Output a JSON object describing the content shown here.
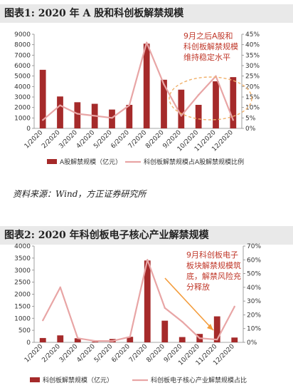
{
  "colors": {
    "bar": "#a52a2a",
    "line": "#e8a5a5",
    "ellipse": "#f0b06a",
    "arrow": "#f39c3b",
    "annotation": "#c0392b"
  },
  "source_text": "资料来源：Wind，方正证券研究所",
  "chart_data": [
    {
      "type": "bar",
      "title": "图表1:   2020 年 A 股和科创板解禁规模",
      "categories": [
        "1/2020",
        "2/2020",
        "3/2020",
        "4/2020",
        "5/2020",
        "6/2020",
        "7/2020",
        "8/2020",
        "9/2020",
        "10/2020",
        "11/2020",
        "12/2020"
      ],
      "ylim": [
        0,
        9000
      ],
      "y2lim": [
        0,
        45
      ],
      "yticks": [
        0,
        1000,
        2000,
        3000,
        4000,
        5000,
        6000,
        7000,
        8000,
        9000
      ],
      "y2ticks": [
        "0%",
        "5%",
        "10%",
        "15%",
        "20%",
        "25%",
        "30%",
        "35%",
        "40%",
        "45%"
      ],
      "series": [
        {
          "name": "A股解禁规模（亿元）",
          "kind": "bar",
          "axis": "left",
          "values": [
            5600,
            3050,
            2500,
            2350,
            1800,
            2250,
            8100,
            4650,
            3700,
            2250,
            4500,
            4900
          ]
        },
        {
          "name": "科创板解禁规模占A股解禁规模比例",
          "kind": "line",
          "axis": "right",
          "values": [
            4,
            11,
            7,
            6,
            5,
            11,
            41,
            21,
            6,
            16,
            25,
            4
          ]
        }
      ],
      "annotation": "9月之后A股和科创板解禁规模维持稳定水平",
      "annotation_lines": [
        "9月之后A股和",
        "科创板解禁规模",
        "维持稳定水平"
      ],
      "legend": "bottom"
    },
    {
      "type": "bar",
      "title": "图表2:   2020 年科创板电子核心产业解禁规模",
      "categories": [
        "1/2020",
        "2/2020",
        "3/2020",
        "4/2020",
        "5/2020",
        "6/2020",
        "7/2020",
        "8/2020",
        "9/2020",
        "10/2020",
        "11/2020",
        "12/2020"
      ],
      "ylim": [
        0,
        4000
      ],
      "y2lim": [
        0,
        70
      ],
      "yticks": [
        0,
        500,
        1000,
        1500,
        2000,
        2500,
        3000,
        3500,
        4000
      ],
      "y2ticks": [
        "0%",
        "10%",
        "20%",
        "30%",
        "40%",
        "50%",
        "60%",
        "70%"
      ],
      "series": [
        {
          "name": "科创板解禁规模（亿元）",
          "kind": "bar",
          "axis": "left",
          "values": [
            180,
            290,
            170,
            30,
            140,
            230,
            3400,
            900,
            220,
            350,
            1080,
            200
          ]
        },
        {
          "name": "科创板电子核心产业解禁规模占比",
          "kind": "line",
          "axis": "right",
          "values": [
            16,
            40,
            3,
            1,
            1,
            4,
            60,
            25,
            15,
            3,
            2,
            26
          ]
        }
      ],
      "annotation": "9月科创板电子板块解禁规模筑底，解禁风险充分释放",
      "annotation_lines": [
        "9月科创板电子",
        "板块解禁规模筑",
        "底，解禁风险充",
        "分释放"
      ],
      "legend": "bottom"
    }
  ]
}
